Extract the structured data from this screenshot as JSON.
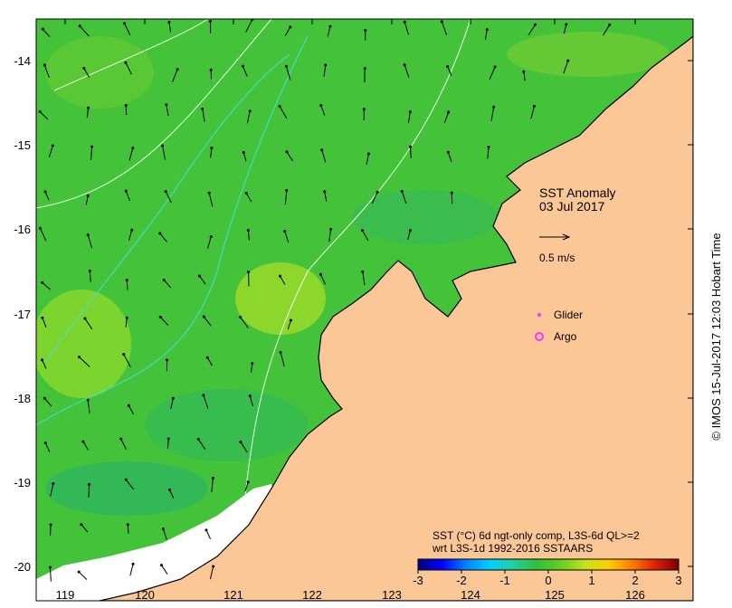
{
  "map": {
    "title_lines": [
      "SST Anomaly",
      "03 Jul 2017"
    ],
    "vector_scale_label": "0.5 m/s",
    "legend": [
      {
        "label": "Glider",
        "color": "#ff33ff",
        "symbol": "plus-dot"
      },
      {
        "label": "Argo",
        "color": "#ff33ff",
        "symbol": "ring"
      }
    ],
    "colorbar": {
      "caption_lines": [
        "SST (°C) 6d ngt-only comp, L3S-6d QL>=2",
        "wrt L3S-1d 1992-2016 SSTAARS"
      ],
      "min": -3,
      "max": 3,
      "ticks": [
        "-3",
        "-2",
        "-1",
        "0",
        "1",
        "2",
        "3"
      ],
      "colors": [
        "#000080",
        "#0000ff",
        "#0080ff",
        "#00d0ff",
        "#20d0a0",
        "#30c040",
        "#60d020",
        "#c0e020",
        "#ffd000",
        "#ff8000",
        "#e02000",
        "#800000"
      ]
    },
    "credit": "© IMOS 15-Jul-2017 12:03 Hobart Time",
    "axes": {
      "lon_ticks": [
        "119",
        "120",
        "121",
        "122",
        "123",
        "124",
        "125",
        "126"
      ],
      "lat_ticks": [
        "-14",
        "-15",
        "-16",
        "-17",
        "-18",
        "-19",
        "-20"
      ]
    },
    "colors": {
      "ocean": "#44c23a",
      "land": "#fcc796",
      "white_patch": "#ffffff",
      "contour": "#e8ffe8",
      "contour_cyan": "#40e0e0"
    }
  }
}
